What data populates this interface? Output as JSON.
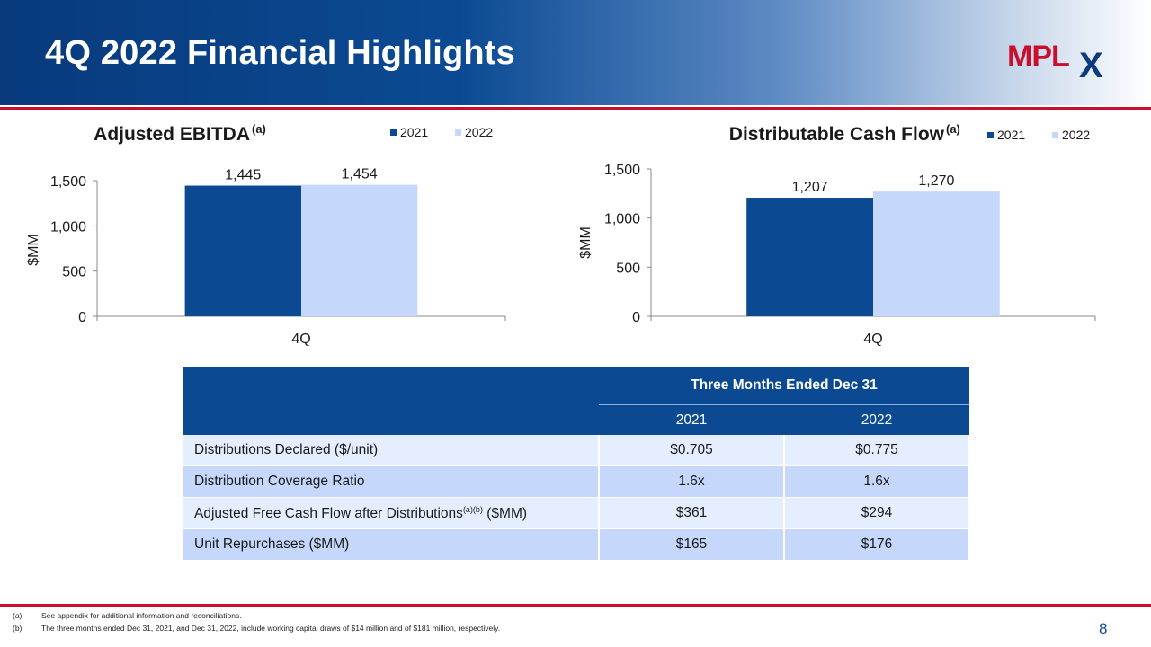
{
  "slide": {
    "title": "4Q 2022 Financial Highlights",
    "page_number": "8",
    "logo_text": "MPLX",
    "colors": {
      "dark_blue": "#0b4a93",
      "light_blue": "#c5d7fb",
      "red": "#c8102e"
    }
  },
  "chart_data": [
    {
      "type": "bar",
      "title": "Adjusted EBITDA",
      "title_superscript": "(a)",
      "categories": [
        "4Q"
      ],
      "series": [
        {
          "name": "2021",
          "values": [
            1445
          ],
          "labels": [
            "1,445"
          ]
        },
        {
          "name": "2022",
          "values": [
            1454
          ],
          "labels": [
            "1,454"
          ]
        }
      ],
      "ylabel": "$MM",
      "xlabel": "",
      "ylim": [
        0,
        1500
      ],
      "yticks": [
        0,
        500,
        1000,
        1500
      ],
      "ytick_labels": [
        "0",
        "500",
        "1,000",
        "1,500"
      ],
      "legend": "top-right",
      "grid": false
    },
    {
      "type": "bar",
      "title": "Distributable Cash Flow",
      "title_superscript": "(a)",
      "categories": [
        "4Q"
      ],
      "series": [
        {
          "name": "2021",
          "values": [
            1207
          ],
          "labels": [
            "1,207"
          ]
        },
        {
          "name": "2022",
          "values": [
            1270
          ],
          "labels": [
            "1,270"
          ]
        }
      ],
      "ylabel": "$MM",
      "xlabel": "",
      "ylim": [
        0,
        1500
      ],
      "yticks": [
        0,
        500,
        1000,
        1500
      ],
      "ytick_labels": [
        "0",
        "500",
        "1,000",
        "1,500"
      ],
      "legend": "top-right",
      "grid": false
    }
  ],
  "table": {
    "header": "Three Months Ended Dec 31",
    "years": [
      "2021",
      "2022"
    ],
    "rows": [
      {
        "label": "Distributions Declared ($/unit)",
        "sup": "",
        "suffix": "",
        "v2021": "$0.705",
        "v2022": "$0.775"
      },
      {
        "label": "Distribution Coverage Ratio",
        "sup": "",
        "suffix": "",
        "v2021": "1.6x",
        "v2022": "1.6x"
      },
      {
        "label": "Adjusted Free Cash Flow after Distributions",
        "sup": "(a)(b)",
        "suffix": " ($MM)",
        "v2021": "$361",
        "v2022": "$294"
      },
      {
        "label": "Unit Repurchases ($MM)",
        "sup": "",
        "suffix": "",
        "v2021": "$165",
        "v2022": "$176"
      }
    ]
  },
  "footnotes": [
    {
      "key": "(a)",
      "text": "See appendix for additional information and reconciliations."
    },
    {
      "key": "(b)",
      "text": "The three months ended Dec 31, 2021, and Dec 31, 2022, include working capital draws of $14 million and of $181 million, respectively."
    }
  ]
}
